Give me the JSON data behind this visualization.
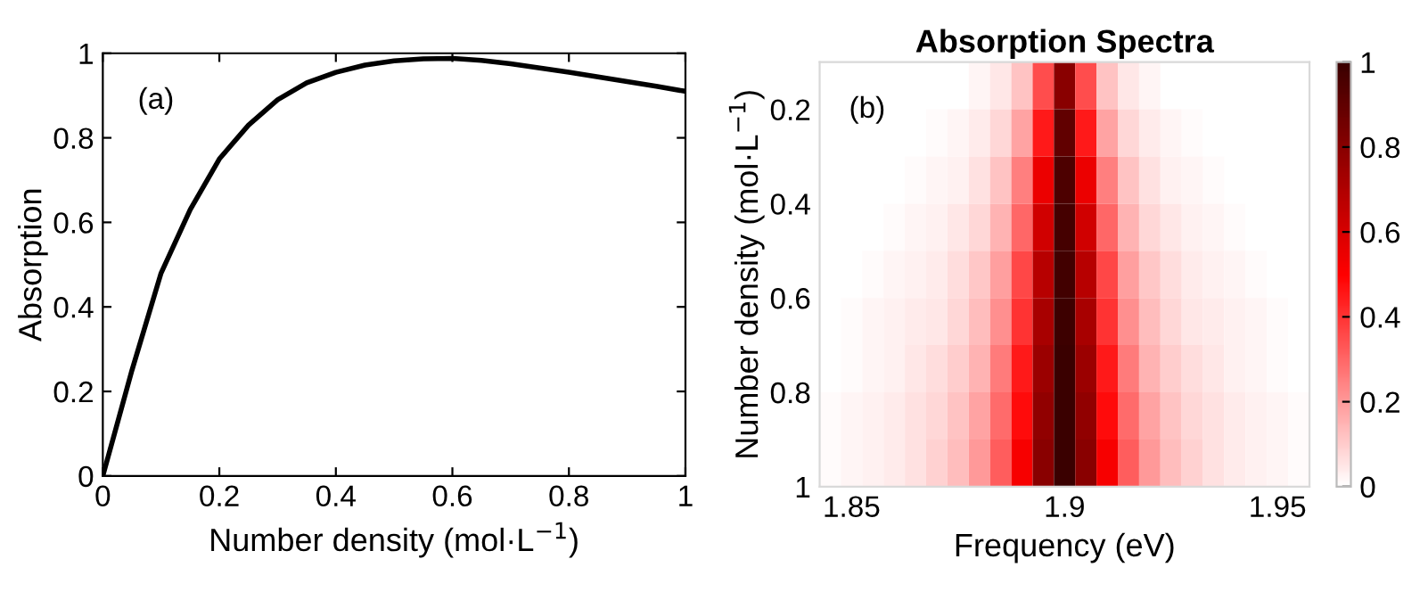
{
  "chart_data": [
    {
      "type": "line",
      "xlabel": "Number density (mol·L$^{−1}$)",
      "ylabel": "Absorption",
      "annotations": [
        "(a)"
      ],
      "xlim": [
        0,
        1
      ],
      "ylim": [
        0,
        1
      ],
      "xticks": [
        0,
        0.2,
        0.4,
        0.6,
        0.8,
        1
      ],
      "yticks": [
        0,
        0.2,
        0.4,
        0.6,
        0.8,
        1
      ],
      "grid": false,
      "marker": "none",
      "line_style": "solid",
      "series": [
        {
          "color": "#000000",
          "x": [
            0,
            0.02,
            0.05,
            0.1,
            0.15,
            0.2,
            0.25,
            0.3,
            0.35,
            0.4,
            0.45,
            0.5,
            0.55,
            0.6,
            0.65,
            0.7,
            0.75,
            0.8,
            0.85,
            0.9,
            0.95,
            1.0
          ],
          "values": [
            0,
            0.1,
            0.25,
            0.48,
            0.63,
            0.75,
            0.83,
            0.89,
            0.93,
            0.955,
            0.972,
            0.982,
            0.987,
            0.988,
            0.983,
            0.975,
            0.965,
            0.955,
            0.944,
            0.933,
            0.922,
            0.91
          ]
        }
      ]
    },
    {
      "type": "heatmap",
      "title": "Absorption Spectra",
      "xlabel": "Frequency (eV)",
      "ylabel": "Number density (mol·L$^{−1}$)",
      "annotations": [
        "(b)"
      ],
      "xlim": [
        1.8425,
        1.9575
      ],
      "ylim": [
        1,
        0.1
      ],
      "xticks": [
        1.85,
        1.9,
        1.95
      ],
      "yticks": [
        0.2,
        0.4,
        0.6,
        0.8,
        1
      ],
      "clim": [
        0,
        1
      ],
      "cticks": [
        0,
        0.2,
        0.4,
        0.6,
        0.8,
        1
      ],
      "colors": [
        "#ffffff",
        "#ff0000",
        "#3a0000"
      ],
      "x": [
        1.845,
        1.85,
        1.855,
        1.86,
        1.865,
        1.87,
        1.875,
        1.88,
        1.885,
        1.89,
        1.895,
        1.9,
        1.905,
        1.91,
        1.915,
        1.92,
        1.925,
        1.93,
        1.935,
        1.94,
        1.945,
        1.95,
        1.955
      ],
      "y": [
        0.15,
        0.25,
        0.35,
        0.45,
        0.55,
        0.65,
        0.75,
        0.85,
        0.95
      ],
      "cells": [
        [
          0,
          0,
          0,
          0,
          0,
          0,
          0,
          0.02,
          0.05,
          0.12,
          0.35,
          0.8,
          0.35,
          0.12,
          0.05,
          0.02,
          0,
          0,
          0,
          0,
          0,
          0,
          0
        ],
        [
          0,
          0,
          0,
          0,
          0,
          0.01,
          0.02,
          0.04,
          0.08,
          0.18,
          0.45,
          0.9,
          0.45,
          0.18,
          0.08,
          0.04,
          0.02,
          0.01,
          0,
          0,
          0,
          0,
          0
        ],
        [
          0,
          0,
          0,
          0,
          0.01,
          0.02,
          0.03,
          0.06,
          0.12,
          0.25,
          0.55,
          0.95,
          0.55,
          0.25,
          0.12,
          0.06,
          0.03,
          0.02,
          0.01,
          0,
          0,
          0,
          0
        ],
        [
          0,
          0,
          0,
          0.01,
          0.02,
          0.03,
          0.05,
          0.08,
          0.15,
          0.3,
          0.62,
          0.97,
          0.62,
          0.3,
          0.15,
          0.08,
          0.05,
          0.03,
          0.02,
          0.01,
          0,
          0,
          0
        ],
        [
          0,
          0,
          0.01,
          0.02,
          0.03,
          0.04,
          0.07,
          0.11,
          0.19,
          0.36,
          0.68,
          0.98,
          0.68,
          0.36,
          0.19,
          0.11,
          0.07,
          0.04,
          0.03,
          0.02,
          0.01,
          0,
          0
        ],
        [
          0,
          0.01,
          0.02,
          0.03,
          0.04,
          0.05,
          0.08,
          0.13,
          0.22,
          0.4,
          0.72,
          0.99,
          0.72,
          0.4,
          0.22,
          0.13,
          0.08,
          0.05,
          0.04,
          0.03,
          0.02,
          0.01,
          0
        ],
        [
          0,
          0.01,
          0.02,
          0.03,
          0.05,
          0.07,
          0.1,
          0.15,
          0.26,
          0.45,
          0.75,
          1,
          0.75,
          0.45,
          0.26,
          0.15,
          0.1,
          0.07,
          0.05,
          0.03,
          0.02,
          0.01,
          0
        ],
        [
          0.01,
          0.02,
          0.03,
          0.04,
          0.06,
          0.08,
          0.12,
          0.18,
          0.29,
          0.48,
          0.78,
          1,
          0.78,
          0.48,
          0.29,
          0.18,
          0.12,
          0.08,
          0.06,
          0.04,
          0.03,
          0.02,
          0.01
        ],
        [
          0.01,
          0.02,
          0.03,
          0.04,
          0.06,
          0.09,
          0.13,
          0.2,
          0.32,
          0.52,
          0.8,
          1,
          0.8,
          0.52,
          0.32,
          0.2,
          0.13,
          0.09,
          0.06,
          0.04,
          0.03,
          0.02,
          0.01
        ]
      ]
    }
  ]
}
